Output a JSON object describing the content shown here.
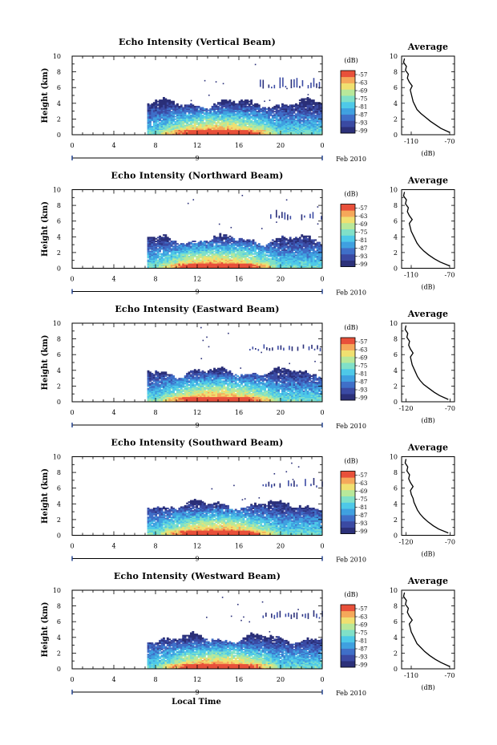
{
  "figure": {
    "xlabel": "Local Time",
    "date_label": "Feb 2010",
    "day_label": "9",
    "colorbar_unit": "(dB)"
  },
  "colors": {
    "colormap": [
      "#2a2f78",
      "#3b4aa3",
      "#3f6fc8",
      "#3fa0e0",
      "#4ec9e8",
      "#7fe0c8",
      "#b8e89a",
      "#f0e070",
      "#f5a85a",
      "#e8503a"
    ]
  },
  "chart_data": [
    {
      "type": "heatmap",
      "title": "Echo Intensity (Vertical Beam)",
      "xlabel": "",
      "ylabel": "Height (km)",
      "x_ticks": [
        "0",
        "4",
        "8",
        "12",
        "16",
        "20",
        "0"
      ],
      "y_ticks": [
        "0",
        "2",
        "4",
        "6",
        "8",
        "10"
      ],
      "xlim": [
        0,
        24
      ],
      "ylim": [
        0,
        10
      ],
      "colorbar": {
        "unit": "(dB)",
        "ticks": [
          "-57",
          "-63",
          "-69",
          "-75",
          "-81",
          "-87",
          "-93",
          "-99"
        ]
      },
      "data_start_hour": 7.2,
      "cloud_top_km": 3.9,
      "upper_layer": {
        "start_hour": 18,
        "base_km": 6.0,
        "top_km": 7.2
      },
      "average_profile": {
        "title": "Average",
        "xlabel": "(dB)",
        "x_ticks": [
          "-110",
          "-70"
        ],
        "xlim": [
          -120,
          -65
        ],
        "y_ticks": [
          "0",
          "2",
          "4",
          "6",
          "8",
          "10"
        ],
        "heights": [
          0.3,
          0.8,
          1.2,
          1.7,
          2.2,
          2.7,
          3.2,
          3.7,
          4.2,
          4.7,
          5.2,
          5.7,
          6.2,
          6.7,
          7.2,
          7.7,
          8.2,
          8.7,
          9.2,
          9.7
        ],
        "values": [
          -70,
          -79,
          -84,
          -90,
          -95,
          -100,
          -104,
          -106,
          -108,
          -109,
          -110,
          -111,
          -109,
          -112,
          -114,
          -113,
          -116,
          -115,
          -118,
          -117
        ]
      }
    },
    {
      "type": "heatmap",
      "title": "Echo Intensity (Northward Beam)",
      "xlabel": "",
      "ylabel": "Height (km)",
      "x_ticks": [
        "0",
        "4",
        "8",
        "12",
        "16",
        "20",
        "0"
      ],
      "y_ticks": [
        "0",
        "2",
        "4",
        "6",
        "8",
        "10"
      ],
      "xlim": [
        0,
        24
      ],
      "ylim": [
        0,
        10
      ],
      "colorbar": {
        "unit": "(dB)",
        "ticks": [
          "-57",
          "-63",
          "-69",
          "-75",
          "-81",
          "-87",
          "-93",
          "-99"
        ]
      },
      "data_start_hour": 7.2,
      "cloud_top_km": 3.6,
      "upper_layer": {
        "start_hour": 19,
        "base_km": 6.3,
        "top_km": 7.1
      },
      "average_profile": {
        "title": "Average",
        "xlabel": "(dB)",
        "x_ticks": [
          "-110",
          "-70"
        ],
        "xlim": [
          -120,
          -65
        ],
        "y_ticks": [
          "0",
          "2",
          "4",
          "6",
          "8",
          "10"
        ],
        "heights": [
          0.3,
          0.8,
          1.2,
          1.7,
          2.2,
          2.7,
          3.2,
          3.7,
          4.2,
          4.7,
          5.2,
          5.7,
          6.2,
          6.7,
          7.2,
          7.7,
          8.2,
          8.7,
          9.2,
          9.7
        ],
        "values": [
          -70,
          -80,
          -86,
          -92,
          -97,
          -101,
          -104,
          -106,
          -108,
          -110,
          -111,
          -112,
          -109,
          -112,
          -114,
          -113,
          -116,
          -115,
          -118,
          -117
        ]
      }
    },
    {
      "type": "heatmap",
      "title": "Echo Intensity (Eastward Beam)",
      "xlabel": "",
      "ylabel": "Height (km)",
      "x_ticks": [
        "0",
        "4",
        "8",
        "12",
        "16",
        "20",
        "0"
      ],
      "y_ticks": [
        "0",
        "2",
        "4",
        "6",
        "8",
        "10"
      ],
      "xlim": [
        0,
        24
      ],
      "ylim": [
        0,
        10
      ],
      "colorbar": {
        "unit": "(dB)",
        "ticks": [
          "-57",
          "-63",
          "-69",
          "-75",
          "-81",
          "-87",
          "-93",
          "-99"
        ]
      },
      "data_start_hour": 7.2,
      "cloud_top_km": 3.7,
      "upper_layer": {
        "start_hour": 17,
        "base_km": 6.6,
        "top_km": 7.0
      },
      "average_profile": {
        "title": "Average",
        "xlabel": "(dB)",
        "x_ticks": [
          "-120",
          "-70"
        ],
        "xlim": [
          -125,
          -65
        ],
        "y_ticks": [
          "0",
          "2",
          "4",
          "6",
          "8",
          "10"
        ],
        "heights": [
          0.3,
          0.8,
          1.2,
          1.7,
          2.2,
          2.7,
          3.2,
          3.7,
          4.2,
          4.7,
          5.2,
          5.7,
          6.2,
          6.7,
          7.2,
          7.7,
          8.2,
          8.7,
          9.2,
          9.7
        ],
        "values": [
          -72,
          -82,
          -88,
          -94,
          -100,
          -104,
          -107,
          -109,
          -111,
          -113,
          -114,
          -115,
          -112,
          -115,
          -117,
          -116,
          -119,
          -118,
          -121,
          -120
        ]
      }
    },
    {
      "type": "heatmap",
      "title": "Echo Intensity (Southward Beam)",
      "xlabel": "",
      "ylabel": "Height (km)",
      "x_ticks": [
        "0",
        "4",
        "8",
        "12",
        "16",
        "20",
        "0"
      ],
      "y_ticks": [
        "0",
        "2",
        "4",
        "6",
        "8",
        "10"
      ],
      "xlim": [
        0,
        24
      ],
      "ylim": [
        0,
        10
      ],
      "colorbar": {
        "unit": "(dB)",
        "ticks": [
          "-57",
          "-63",
          "-69",
          "-75",
          "-81",
          "-87",
          "-93",
          "-99"
        ]
      },
      "data_start_hour": 7.2,
      "cloud_top_km": 3.8,
      "upper_layer": {
        "start_hour": 18,
        "base_km": 6.2,
        "top_km": 7.0
      },
      "average_profile": {
        "title": "Average",
        "xlabel": "(dB)",
        "x_ticks": [
          "-120",
          "-70"
        ],
        "xlim": [
          -125,
          -65
        ],
        "y_ticks": [
          "0",
          "2",
          "4",
          "6",
          "8",
          "10"
        ],
        "heights": [
          0.3,
          0.8,
          1.2,
          1.7,
          2.2,
          2.7,
          3.2,
          3.7,
          4.2,
          4.7,
          5.2,
          5.7,
          6.2,
          6.7,
          7.2,
          7.7,
          8.2,
          8.7,
          9.2,
          9.7
        ],
        "values": [
          -72,
          -83,
          -89,
          -95,
          -100,
          -104,
          -107,
          -109,
          -111,
          -112,
          -114,
          -115,
          -112,
          -115,
          -117,
          -116,
          -119,
          -118,
          -121,
          -120
        ]
      }
    },
    {
      "type": "heatmap",
      "title": "Echo Intensity (Westward Beam)",
      "xlabel": "Local Time",
      "ylabel": "Height (km)",
      "x_ticks": [
        "0",
        "4",
        "8",
        "12",
        "16",
        "20",
        "0"
      ],
      "y_ticks": [
        "0",
        "2",
        "4",
        "6",
        "8",
        "10"
      ],
      "xlim": [
        0,
        24
      ],
      "ylim": [
        0,
        10
      ],
      "colorbar": {
        "unit": "(dB)",
        "ticks": [
          "-57",
          "-63",
          "-69",
          "-75",
          "-81",
          "-87",
          "-93",
          "-99"
        ]
      },
      "data_start_hour": 7.2,
      "cloud_top_km": 3.8,
      "upper_layer": {
        "start_hour": 18,
        "base_km": 6.5,
        "top_km": 7.2
      },
      "average_profile": {
        "title": "Average",
        "xlabel": "(dB)",
        "x_ticks": [
          "-110",
          "-70"
        ],
        "xlim": [
          -120,
          -65
        ],
        "y_ticks": [
          "0",
          "2",
          "4",
          "6",
          "8",
          "10"
        ],
        "heights": [
          0.3,
          0.8,
          1.2,
          1.7,
          2.2,
          2.7,
          3.2,
          3.7,
          4.2,
          4.7,
          5.2,
          5.7,
          6.2,
          6.7,
          7.2,
          7.7,
          8.2,
          8.7,
          9.2,
          9.7
        ],
        "values": [
          -70,
          -79,
          -85,
          -91,
          -96,
          -100,
          -104,
          -106,
          -108,
          -110,
          -111,
          -112,
          -109,
          -112,
          -114,
          -113,
          -116,
          -115,
          -118,
          -117
        ]
      }
    }
  ]
}
